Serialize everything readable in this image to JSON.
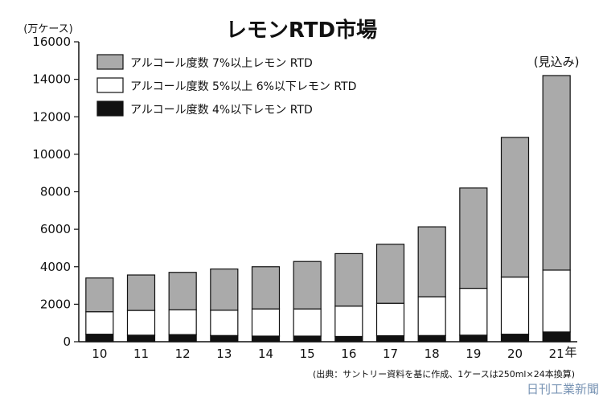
{
  "chart_data": {
    "type": "bar",
    "stacked": true,
    "title": "レモンRTD市場",
    "ylabel": "(万ケース)",
    "xunit": "年",
    "ylim": [
      0,
      16000
    ],
    "yticks": [
      0,
      2000,
      4000,
      6000,
      8000,
      10000,
      12000,
      14000,
      16000
    ],
    "categories": [
      "10",
      "11",
      "12",
      "13",
      "14",
      "15",
      "16",
      "17",
      "18",
      "19",
      "20",
      "21"
    ],
    "series": [
      {
        "name": "アルコール度数 4%以下レモン RTD",
        "color": "#111111",
        "values": [
          400,
          350,
          380,
          330,
          300,
          300,
          280,
          320,
          330,
          350,
          400,
          520
        ]
      },
      {
        "name": "アルコール度数 5%以上 6%以下レモン RTD",
        "color": "#ffffff",
        "values": [
          1200,
          1320,
          1320,
          1350,
          1450,
          1450,
          1620,
          1730,
          2070,
          2500,
          3050,
          3300
        ]
      },
      {
        "name": "アルコール度数 7%以上レモン RTD",
        "color": "#aaaaaa",
        "values": [
          1800,
          1890,
          2000,
          2200,
          2250,
          2530,
          2800,
          3150,
          3730,
          5350,
          7450,
          10380
        ]
      }
    ],
    "legend_order": [
      2,
      1,
      0
    ],
    "annotation": {
      "category": "21",
      "text": "(見込み)"
    },
    "source_note": "(出典：サントリー資料を基に作成、1ケースは250ml×24本換算)",
    "grid": false,
    "legend_position": "top-left"
  },
  "watermark": "日刊工業新聞"
}
